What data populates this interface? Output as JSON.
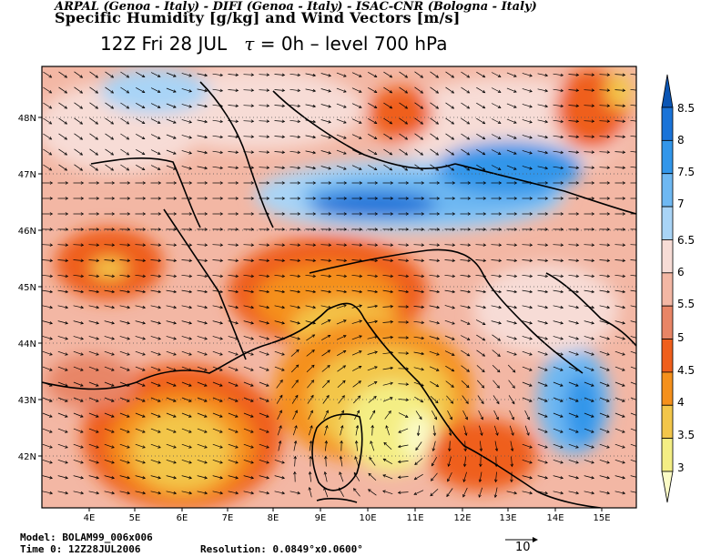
{
  "header": {
    "institutions": "ARPAL (Genoa - Italy)  -  DIFI (Genoa - Italy)  -  ISAC-CNR (Bologna - Italy)",
    "title": "Specific Humidity [g/kg] and Wind Vectors [m/s]",
    "time_prefix": "12Z Fri 28 JUL",
    "tau_symbol": "τ",
    "tau_value": " = 0h",
    "level": "  –  level 700 hPa"
  },
  "axes": {
    "lon_labels": [
      "4E",
      "5E",
      "6E",
      "7E",
      "8E",
      "9E",
      "10E",
      "11E",
      "12E",
      "13E",
      "14E",
      "15E"
    ],
    "lat_labels": [
      "48N",
      "47N",
      "46N",
      "45N",
      "44N",
      "43N",
      "42N"
    ]
  },
  "colorbar": {
    "labels": [
      "8.5",
      "8",
      "7.5",
      "7",
      "6.5",
      "6",
      "5.5",
      "5",
      "4.5",
      "4",
      "3.5",
      "3"
    ],
    "colors": [
      "#0a55b4",
      "#1a73d8",
      "#3296ea",
      "#6eb8f2",
      "#a9d4f6",
      "#f7dcd6",
      "#f3b7a4",
      "#e88566",
      "#ef5f1c",
      "#f5901c",
      "#f3c64a",
      "#f4ee84",
      "#fbfbc6"
    ]
  },
  "footer": {
    "model": "Model: BOLAM99_006x006",
    "time": "Time 0: 12Z28JUL2006",
    "resolution": "Resolution: 0.0849°x0.0600°",
    "ref_vector_label": "10"
  }
}
